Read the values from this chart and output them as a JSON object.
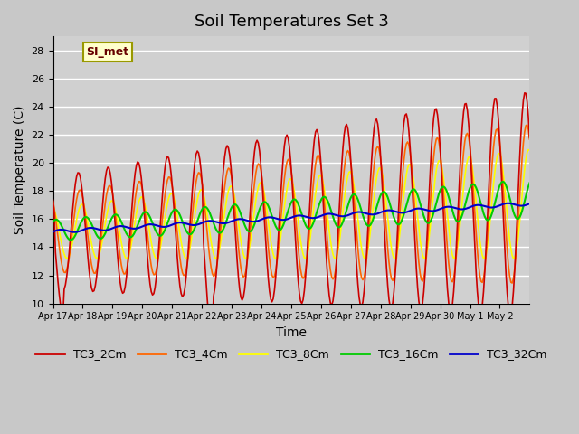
{
  "title": "Soil Temperatures Set 3",
  "xlabel": "Time",
  "ylabel": "Soil Temperature (C)",
  "ylim": [
    10,
    29
  ],
  "yticks": [
    10,
    12,
    14,
    16,
    18,
    20,
    22,
    24,
    26,
    28
  ],
  "fig_facecolor": "#c8c8c8",
  "ax_facecolor": "#d0d0d0",
  "grid_color": "#ffffff",
  "legend_label": "SI_met",
  "series_colors": {
    "TC3_2Cm": "#cc0000",
    "TC3_4Cm": "#ff6600",
    "TC3_8Cm": "#ffff00",
    "TC3_16Cm": "#00cc00",
    "TC3_32Cm": "#0000cc"
  },
  "x_tick_labels": [
    "Apr 17",
    "Apr 18",
    "Apr 19",
    "Apr 20",
    "Apr 21",
    "Apr 22",
    "Apr 23",
    "Apr 24",
    "Apr 25",
    "Apr 26",
    "Apr 27",
    "Apr 28",
    "Apr 29",
    "Apr 30",
    "May 1",
    "May 2"
  ],
  "num_points": 384
}
